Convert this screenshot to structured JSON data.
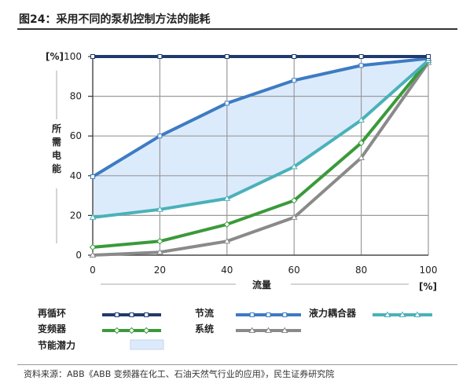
{
  "figure": {
    "title": "图24：采用不同的泵机控制方法的能耗",
    "source": "资料来源：ABB《ABB 变频器在化工、石油天然气行业的应用》，民生证券研究院"
  },
  "chart_data": {
    "type": "line",
    "title": "图24：采用不同的泵机控制方法的能耗",
    "xlabel": "流量",
    "xunit": "[%]",
    "ylabel": "所需电能",
    "yunit": "[%]",
    "xlim": [
      0,
      100
    ],
    "ylim": [
      0,
      100
    ],
    "xticks": [
      0,
      20,
      40,
      60,
      80,
      100
    ],
    "yticks": [
      0,
      20,
      40,
      60,
      80,
      100
    ],
    "grid": true,
    "legend_position": "bottom",
    "series": [
      {
        "name": "再循环",
        "color": "#1f3a6e",
        "marker": "square",
        "x": [
          0,
          20,
          40,
          60,
          80,
          100
        ],
        "y": [
          100,
          100,
          100,
          100,
          100,
          100
        ]
      },
      {
        "name": "节流",
        "color": "#3d7bc4",
        "marker": "square",
        "x": [
          0,
          20,
          40,
          60,
          80,
          100
        ],
        "y": [
          39.5,
          60,
          76.5,
          88,
          95.5,
          99
        ]
      },
      {
        "name": "液力耦合器",
        "color": "#4ab1b9",
        "marker": "triangle",
        "x": [
          0,
          20,
          40,
          60,
          80,
          100
        ],
        "y": [
          19,
          23,
          28.5,
          44.5,
          68,
          98
        ]
      },
      {
        "name": "变频器",
        "color": "#3a9a3a",
        "marker": "diamond",
        "x": [
          0,
          20,
          40,
          60,
          80,
          100
        ],
        "y": [
          4,
          7,
          15.5,
          27.5,
          56.5,
          98
        ]
      },
      {
        "name": "系统",
        "color": "#8a8a8a",
        "marker": "triangle",
        "x": [
          0,
          20,
          40,
          60,
          80,
          100
        ],
        "y": [
          0,
          1.5,
          7,
          19,
          49,
          97
        ]
      }
    ],
    "area": {
      "name": "节能潜力",
      "color": "#dcebfb",
      "upper_series": "节流",
      "lower_series": "液力耦合器"
    }
  }
}
